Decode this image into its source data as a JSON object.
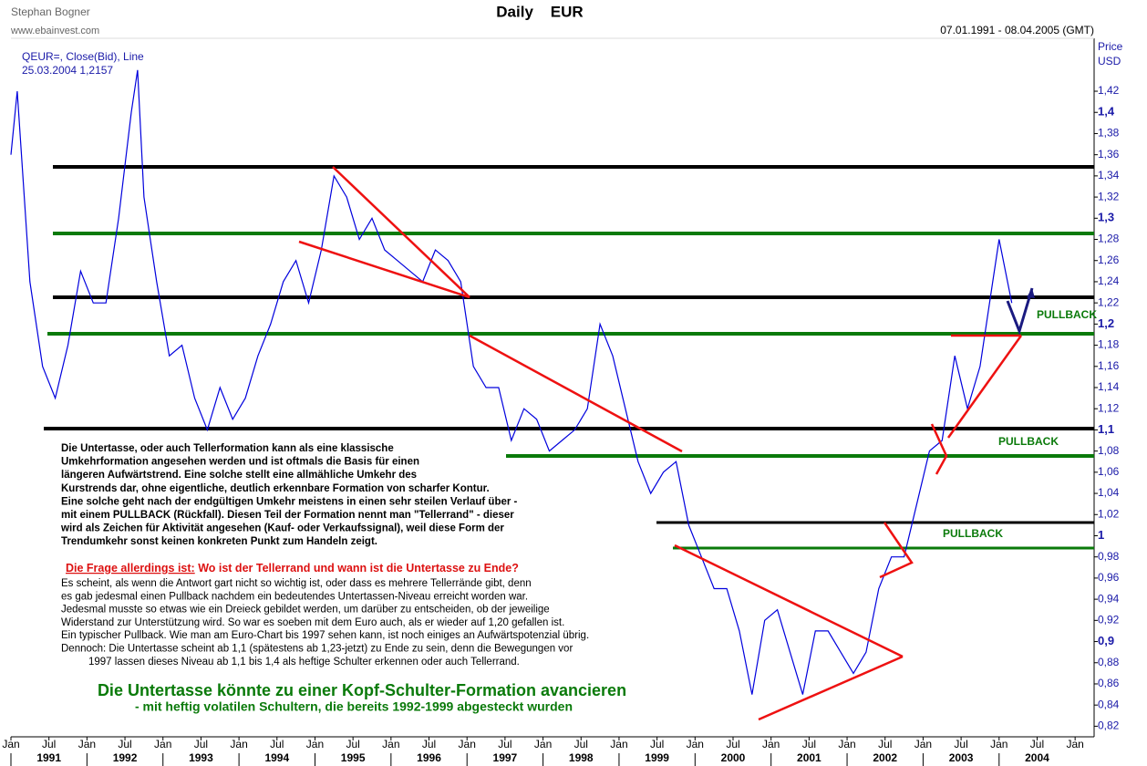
{
  "header": {
    "author": "Stephan Bogner",
    "site": "www.ebainvest.com",
    "title": "Daily    EUR",
    "range": "07.01.1991 - 08.04.2005 (GMT)",
    "axis_title": "Price",
    "axis_unit": "USD",
    "instrument": "QEUR=, Close(Bid), Line",
    "last": "25.03.2004 1,2157"
  },
  "annotations": {
    "pullbacks": [
      "PULLBACK",
      "PULLBACK",
      "PULLBACK"
    ],
    "paragraph1": [
      "Die Untertasse, oder auch Tellerformation kann als eine klassische",
      "Umkehrformation angesehen werden und ist oftmals die Basis für einen",
      "längeren Aufwärtstrend. Eine solche stellt eine allmähliche Umkehr des",
      "Kurstrends dar, ohne eigentliche, deutlich erkennbare Formation von scharfer Kontur.",
      "Eine solche geht nach der endgültigen Umkehr meistens in einen sehr steilen Verlauf über -",
      "mit einem PULLBACK (Rückfall). Diesen Teil der Formation nennt man \"Tellerrand\" -  dieser",
      "wird als Zeichen für Aktivität angesehen (Kauf- oder Verkaufssignal), weil diese Form der",
      "Trendumkehr sonst keinen konkreten Punkt zum Handeln zeigt."
    ],
    "question": [
      "Die Frage allerdings ist:",
      " Wo ist der Tellerrand und wann ist die Untertasse zu Ende?"
    ],
    "paragraph2": [
      "Es scheint, als wenn die Antwort gart nicht so wichtig ist, oder dass es mehrere Tellerrände gibt, denn",
      "es gab jedesmal einen Pullback nachdem ein bedeutendes Untertassen-Niveau erreicht worden war.",
      "Jedesmal musste so etwas wie ein Dreieck gebildet werden, um darüber zu entscheiden, ob der jeweilige",
      "Widerstand zur Unterstützung wird. So war es soeben mit dem Euro auch, als er wieder auf 1,20 gefallen ist.",
      "Ein typischer Pullback. Wie man am Euro-Chart bis 1997 sehen kann, ist noch einiges an Aufwärtspotenzial übrig.",
      "Dennoch: Die Untertasse scheint ab 1,1 (spätestens ab 1,23-jetzt) zu Ende zu sein, denn die Bewegungen vor",
      "1997 lassen dieses Niveau ab 1,1 bis 1,4 als heftige Schulter erkennen oder auch Tellerrand."
    ],
    "headline": "Die Untertasse könnte zu einer Kopf-Schulter-Formation avancieren",
    "subheadline": "- mit heftig volatilen Schultern, die bereits 1992-1999 abgesteckt wurden"
  },
  "chart_data": {
    "type": "line",
    "color": "#0000dd",
    "xlim": [
      "1991-01",
      "2005-04"
    ],
    "ylim": [
      0.81,
      1.47
    ],
    "x": [
      "1991-01",
      "1991-02",
      "1991-04",
      "1991-06",
      "1991-08",
      "1991-10",
      "1991-12",
      "1992-02",
      "1992-04",
      "1992-06",
      "1992-08",
      "1992-09",
      "1992-10",
      "1992-12",
      "1993-02",
      "1993-04",
      "1993-06",
      "1993-08",
      "1993-10",
      "1993-12",
      "1994-02",
      "1994-04",
      "1994-06",
      "1994-08",
      "1994-10",
      "1994-12",
      "1995-02",
      "1995-04",
      "1995-06",
      "1995-08",
      "1995-10",
      "1995-12",
      "1996-02",
      "1996-04",
      "1996-06",
      "1996-08",
      "1996-10",
      "1996-12",
      "1997-02",
      "1997-04",
      "1997-06",
      "1997-08",
      "1997-10",
      "1997-12",
      "1998-02",
      "1998-04",
      "1998-06",
      "1998-08",
      "1998-10",
      "1998-12",
      "1999-02",
      "1999-04",
      "1999-06",
      "1999-08",
      "1999-10",
      "1999-12",
      "2000-02",
      "2000-04",
      "2000-06",
      "2000-08",
      "2000-10",
      "2000-12",
      "2001-02",
      "2001-04",
      "2001-06",
      "2001-08",
      "2001-10",
      "2001-12",
      "2002-02",
      "2002-04",
      "2002-06",
      "2002-08",
      "2002-10",
      "2002-12",
      "2003-02",
      "2003-04",
      "2003-06",
      "2003-08",
      "2003-10",
      "2003-12",
      "2004-01",
      "2004-02",
      "2004-03"
    ],
    "values": [
      1.36,
      1.42,
      1.24,
      1.16,
      1.13,
      1.18,
      1.25,
      1.22,
      1.22,
      1.3,
      1.4,
      1.44,
      1.32,
      1.24,
      1.17,
      1.18,
      1.13,
      1.1,
      1.14,
      1.11,
      1.13,
      1.17,
      1.2,
      1.24,
      1.26,
      1.22,
      1.27,
      1.34,
      1.32,
      1.28,
      1.3,
      1.27,
      1.26,
      1.25,
      1.24,
      1.27,
      1.26,
      1.24,
      1.16,
      1.14,
      1.14,
      1.09,
      1.12,
      1.11,
      1.08,
      1.09,
      1.1,
      1.12,
      1.2,
      1.17,
      1.12,
      1.07,
      1.04,
      1.06,
      1.07,
      1.01,
      0.98,
      0.95,
      0.95,
      0.91,
      0.85,
      0.92,
      0.93,
      0.89,
      0.85,
      0.91,
      0.91,
      0.89,
      0.87,
      0.89,
      0.95,
      0.98,
      0.98,
      1.03,
      1.08,
      1.09,
      1.17,
      1.12,
      1.16,
      1.24,
      1.28,
      1.25,
      1.22
    ],
    "yticks": [
      {
        "value": 0.82,
        "label": "0,82"
      },
      {
        "value": 0.84,
        "label": "0,84"
      },
      {
        "value": 0.86,
        "label": "0,86"
      },
      {
        "value": 0.88,
        "label": "0,88"
      },
      {
        "value": 0.9,
        "label": "0,9"
      },
      {
        "value": 0.92,
        "label": "0,92"
      },
      {
        "value": 0.94,
        "label": "0,94"
      },
      {
        "value": 0.96,
        "label": "0,96"
      },
      {
        "value": 0.98,
        "label": "0,98"
      },
      1,
      {
        "value": 1.02,
        "label": "1,02"
      },
      {
        "value": 1.04,
        "label": "1,04"
      },
      {
        "value": 1.06,
        "label": "1,06"
      },
      {
        "value": 1.08,
        "label": "1,08"
      },
      {
        "value": 1.1,
        "label": "1,1"
      },
      {
        "value": 1.12,
        "label": "1,12"
      },
      {
        "value": 1.14,
        "label": "1,14"
      },
      {
        "value": 1.16,
        "label": "1,16"
      },
      {
        "value": 1.18,
        "label": "1,18"
      },
      {
        "value": 1.2,
        "label": "1,2"
      },
      {
        "value": 1.22,
        "label": "1,22"
      },
      {
        "value": 1.24,
        "label": "1,24"
      },
      {
        "value": 1.26,
        "label": "1,26"
      },
      {
        "value": 1.28,
        "label": "1,28"
      },
      {
        "value": 1.3,
        "label": "1,3"
      },
      {
        "value": 1.32,
        "label": "1,32"
      },
      {
        "value": 1.34,
        "label": "1,34"
      },
      {
        "value": 1.36,
        "label": "1,36"
      },
      {
        "value": 1.38,
        "label": "1,38"
      },
      {
        "value": 1.4,
        "label": "1,4"
      },
      {
        "value": 1.42,
        "label": "1,42"
      }
    ],
    "xticks": [
      {
        "value": "1991-01",
        "label": "Jan"
      },
      {
        "value": "1991-07",
        "label": "Jul"
      },
      {
        "value": "1992-01",
        "label": "Jan"
      },
      {
        "value": "1992-07",
        "label": "Jul"
      },
      {
        "value": "1993-01",
        "label": "Jan"
      },
      {
        "value": "1993-07",
        "label": "Jul"
      },
      {
        "value": "1994-01",
        "label": "Jan"
      },
      {
        "value": "1994-07",
        "label": "Jul"
      },
      {
        "value": "1995-01",
        "label": "Jan"
      },
      {
        "value": "1995-07",
        "label": "Jul"
      },
      {
        "value": "1996-01",
        "label": "Jan"
      },
      {
        "value": "1996-07",
        "label": "Jul"
      },
      {
        "value": "1997-01",
        "label": "Jan"
      },
      {
        "value": "1997-07",
        "label": "Jul"
      },
      {
        "value": "1998-01",
        "label": "Jan"
      },
      {
        "value": "1998-07",
        "label": "Jul"
      },
      {
        "value": "1999-01",
        "label": "Jan"
      },
      {
        "value": "1999-07",
        "label": "Jul"
      },
      {
        "value": "2000-01",
        "label": "Jan"
      },
      {
        "value": "2000-07",
        "label": "Jul"
      },
      {
        "value": "2001-01",
        "label": "Jan"
      },
      {
        "value": "2001-07",
        "label": "Jul"
      },
      {
        "value": "2002-01",
        "label": "Jan"
      },
      {
        "value": "2002-07",
        "label": "Jul"
      },
      {
        "value": "2003-01",
        "label": "Jan"
      },
      {
        "value": "2003-07",
        "label": "Jul"
      },
      {
        "value": "2004-01",
        "label": "Jan"
      },
      {
        "value": "2004-07",
        "label": "Jul"
      },
      {
        "value": "2005-01",
        "label": "Jan"
      }
    ],
    "year_labels": [
      "1991",
      "1992",
      "1993",
      "1994",
      "1995",
      "1996",
      "1997",
      "1998",
      "1999",
      "2000",
      "2001",
      "2002",
      "2003",
      "2004"
    ]
  }
}
